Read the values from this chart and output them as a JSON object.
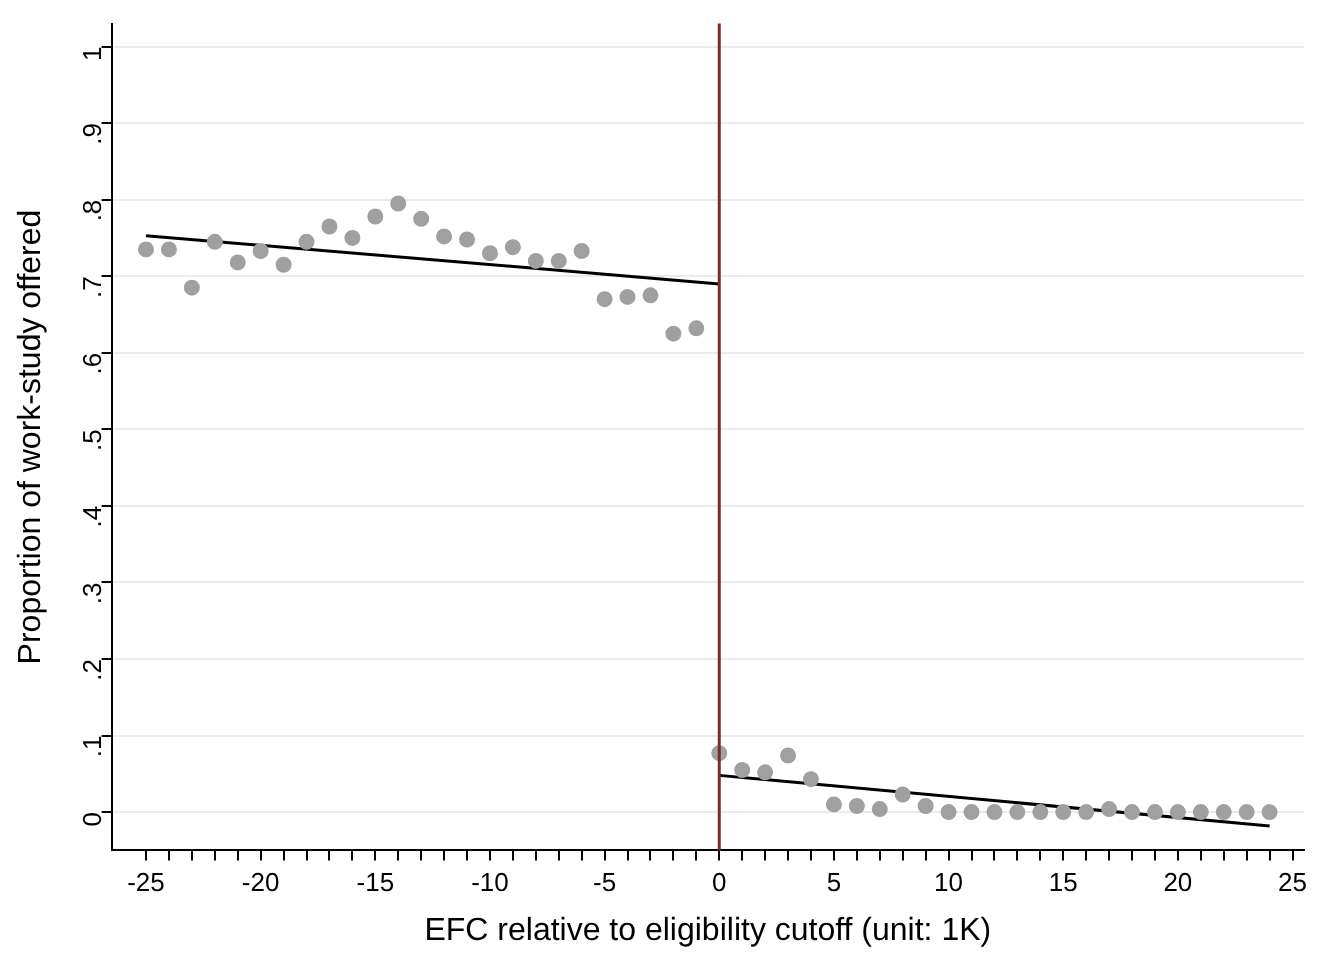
{
  "chart_data": {
    "type": "scatter",
    "xlabel": "EFC relative to eligibility cutoff (unit: 1K)",
    "ylabel": "Proportion of work-study offered",
    "xlim": [
      -26.5,
      25.5
    ],
    "ylim": [
      -0.05,
      1.03
    ],
    "xticks": [
      -25,
      {
        "value": -24,
        "label": null
      },
      {
        "value": -23,
        "label": null
      },
      {
        "value": -22,
        "label": null
      },
      {
        "value": -21,
        "label": null
      },
      -20,
      {
        "value": -19,
        "label": null
      },
      {
        "value": -18,
        "label": null
      },
      {
        "value": -17,
        "label": null
      },
      {
        "value": -16,
        "label": null
      },
      -15,
      {
        "value": -14,
        "label": null
      },
      {
        "value": -13,
        "label": null
      },
      {
        "value": -12,
        "label": null
      },
      {
        "value": -11,
        "label": null
      },
      -10,
      {
        "value": -9,
        "label": null
      },
      {
        "value": -8,
        "label": null
      },
      {
        "value": -7,
        "label": null
      },
      {
        "value": -6,
        "label": null
      },
      -5,
      {
        "value": -4,
        "label": null
      },
      {
        "value": -3,
        "label": null
      },
      {
        "value": -2,
        "label": null
      },
      {
        "value": -1,
        "label": null
      },
      0,
      {
        "value": 1,
        "label": null
      },
      {
        "value": 2,
        "label": null
      },
      {
        "value": 3,
        "label": null
      },
      {
        "value": 4,
        "label": null
      },
      5,
      {
        "value": 6,
        "label": null
      },
      {
        "value": 7,
        "label": null
      },
      {
        "value": 8,
        "label": null
      },
      {
        "value": 9,
        "label": null
      },
      10,
      {
        "value": 11,
        "label": null
      },
      {
        "value": 12,
        "label": null
      },
      {
        "value": 13,
        "label": null
      },
      {
        "value": 14,
        "label": null
      },
      15,
      {
        "value": 16,
        "label": null
      },
      {
        "value": 17,
        "label": null
      },
      {
        "value": 18,
        "label": null
      },
      {
        "value": 19,
        "label": null
      },
      20,
      {
        "value": 21,
        "label": null
      },
      {
        "value": 22,
        "label": null
      },
      {
        "value": 23,
        "label": null
      },
      {
        "value": 24,
        "label": null
      },
      25
    ],
    "yticks": [
      0,
      {
        "value": 0.1,
        "label": ".1"
      },
      {
        "value": 0.2,
        "label": ".2"
      },
      {
        "value": 0.3,
        "label": ".3"
      },
      {
        "value": 0.4,
        "label": ".4"
      },
      {
        "value": 0.5,
        "label": ".5"
      },
      {
        "value": 0.6,
        "label": ".6"
      },
      {
        "value": 0.7,
        "label": ".7"
      },
      {
        "value": 0.8,
        "label": ".8"
      },
      {
        "value": 0.9,
        "label": ".9"
      },
      1
    ],
    "grid": "y",
    "marker": "circle",
    "ref_lines": [
      {
        "axis": "x",
        "value": 0,
        "color": "#7f2a2a"
      }
    ],
    "series": [
      {
        "color": "#a0a0a0",
        "x": [
          -25,
          -24,
          -23,
          -22,
          -21,
          -20,
          -19,
          -18,
          -17,
          -16,
          -15,
          -14,
          -13,
          -12,
          -11,
          -10,
          -9,
          -8,
          -7,
          -6,
          -5,
          -4,
          -3,
          -2,
          -1
        ],
        "values": [
          0.735,
          0.735,
          0.685,
          0.745,
          0.718,
          0.733,
          0.715,
          0.745,
          0.765,
          0.75,
          0.778,
          0.795,
          0.775,
          0.752,
          0.748,
          0.73,
          0.738,
          0.72,
          0.72,
          0.733,
          0.67,
          0.673,
          0.675,
          0.625,
          0.632
        ]
      },
      {
        "color": "#a0a0a0",
        "x": [
          0,
          1,
          2,
          3,
          4,
          5,
          6,
          7,
          8,
          9,
          10,
          11,
          12,
          13,
          14,
          15,
          16,
          17,
          18,
          19,
          20,
          21,
          22,
          23,
          24
        ],
        "values": [
          0.077,
          0.055,
          0.052,
          0.074,
          0.043,
          0.01,
          0.008,
          0.004,
          0.023,
          0.008,
          0,
          0,
          0,
          0,
          0,
          0,
          0,
          0.004,
          0,
          0,
          0,
          0,
          0,
          0,
          0
        ]
      },
      {
        "type": "line",
        "color": "#000000",
        "marker": "none",
        "x": [
          -25,
          0
        ],
        "values": [
          0.753,
          0.69
        ]
      },
      {
        "type": "line",
        "color": "#000000",
        "marker": "none",
        "x": [
          0,
          24
        ],
        "values": [
          0.048,
          -0.018
        ]
      }
    ]
  }
}
